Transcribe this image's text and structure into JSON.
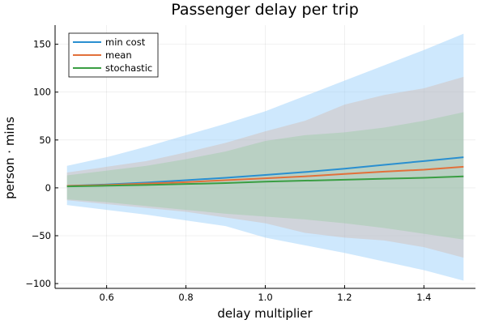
{
  "chart_data": {
    "type": "line",
    "title": "Passenger delay per trip",
    "xlabel": "delay multiplier",
    "ylabel": "person · mins",
    "xlim": [
      0.47,
      1.53
    ],
    "ylim": [
      -105,
      170
    ],
    "xticks": [
      0.6,
      0.8,
      1.0,
      1.2,
      1.4
    ],
    "xtick_labels": [
      "0.6",
      "0.8",
      "1.0",
      "1.2",
      "1.4"
    ],
    "yticks": [
      -100,
      -50,
      0,
      50,
      100,
      150
    ],
    "ytick_labels": [
      "−100",
      "−50",
      "0",
      "50",
      "100",
      "150"
    ],
    "grid": true,
    "legend_position": "top-left",
    "x": [
      0.5,
      0.6,
      0.7,
      0.8,
      0.9,
      1.0,
      1.1,
      1.2,
      1.3,
      1.4,
      1.5
    ],
    "series": [
      {
        "name": "min cost",
        "color": "#2a8fd0",
        "band_color": "#9dd2fb",
        "band_opacity": 0.5,
        "values": [
          2,
          3.5,
          5.5,
          8,
          10.5,
          13.5,
          16.5,
          20,
          24,
          28,
          32
        ],
        "upper": [
          23,
          32,
          43,
          55,
          67,
          80,
          96,
          112,
          128,
          144,
          161
        ],
        "lower": [
          -18,
          -23,
          -28,
          -34,
          -40,
          -52,
          -60,
          -68,
          -77,
          -86,
          -97
        ]
      },
      {
        "name": "mean",
        "color": "#e2703a",
        "band_color": "#d5a790",
        "band_opacity": 0.3,
        "values": [
          2,
          3,
          4.5,
          6,
          8,
          10,
          12,
          14.5,
          17,
          19,
          22
        ],
        "upper": [
          16,
          22,
          28,
          37,
          47,
          59,
          70,
          87,
          97,
          104,
          116
        ],
        "lower": [
          -13,
          -17,
          -21,
          -25,
          -31,
          -37,
          -47,
          -52,
          -55,
          -62,
          -73
        ]
      },
      {
        "name": "stochastic",
        "color": "#3a9e43",
        "band_color": "#86c88b",
        "band_opacity": 0.3,
        "values": [
          1.5,
          2.2,
          3,
          4,
          5,
          6.5,
          7.5,
          8.5,
          9.5,
          10.5,
          12
        ],
        "upper": [
          13,
          18,
          23,
          30,
          38,
          49,
          55,
          58,
          63,
          70,
          79
        ],
        "lower": [
          -12,
          -15,
          -19,
          -23,
          -27,
          -30,
          -33,
          -37,
          -42,
          -48,
          -54
        ]
      }
    ]
  }
}
